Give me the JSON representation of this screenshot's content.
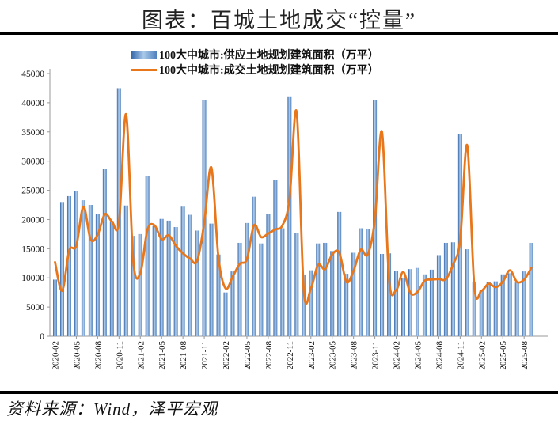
{
  "title": "图表：百城土地成交“控量”",
  "source_note": "资料来源：Wind，泽平宏观",
  "legend": [
    {
      "label": "100大中城市:供应土地规划建筑面积（万平）",
      "swatch": "blue-gradient-bar",
      "color": "#4f81bd"
    },
    {
      "label": "100大中城市:成交土地规划建筑面积（万平）",
      "swatch": "orange-line",
      "color": "#e8761b"
    }
  ],
  "chart_data": {
    "type": "bar",
    "title": "图表：百城土地成交“控量”",
    "xlabel": "",
    "ylabel": "",
    "ylim": [
      0,
      45000
    ],
    "ytick_step": 5000,
    "xtick_every": 3,
    "grid": false,
    "legend_position": "top",
    "bar_color": "#4f81bd",
    "line_color": "#e8761b",
    "categories": [
      "2020-02",
      "2020-03",
      "2020-04",
      "2020-05",
      "2020-06",
      "2020-07",
      "2020-08",
      "2020-09",
      "2020-10",
      "2020-11",
      "2020-12",
      "2021-01",
      "2021-02",
      "2021-03",
      "2021-04",
      "2021-05",
      "2021-06",
      "2021-07",
      "2021-08",
      "2021-09",
      "2021-10",
      "2021-11",
      "2021-12",
      "2022-01",
      "2022-02",
      "2022-03",
      "2022-04",
      "2022-05",
      "2022-06",
      "2022-07",
      "2022-08",
      "2022-09",
      "2022-10",
      "2022-11",
      "2022-12",
      "2023-01",
      "2023-02",
      "2023-03",
      "2023-04",
      "2023-05",
      "2023-06",
      "2023-07",
      "2023-08",
      "2023-09",
      "2023-10",
      "2023-11",
      "2023-12",
      "2024-01",
      "2024-02",
      "2024-03",
      "2024-04",
      "2024-05",
      "2024-06",
      "2024-07",
      "2024-08",
      "2024-09",
      "2024-10",
      "2024-11",
      "2024-12",
      "2025-01",
      "2025-02",
      "2025-03",
      "2025-04",
      "2025-05",
      "2025-06",
      "2025-07",
      "2025-08",
      "2025-09"
    ],
    "series": [
      {
        "name": "100大中城市:供应土地规划建筑面积（万平）",
        "type": "bar",
        "color": "#4f81bd",
        "values": [
          9700,
          23000,
          24000,
          24900,
          23300,
          22500,
          21000,
          28700,
          19700,
          42500,
          22400,
          17200,
          17500,
          27400,
          18900,
          20100,
          19800,
          18700,
          22200,
          20800,
          18100,
          40400,
          19300,
          14000,
          7500,
          11100,
          16000,
          19400,
          23900,
          15900,
          21000,
          26700,
          18500,
          41100,
          17700,
          10500,
          11300,
          15900,
          16000,
          14600,
          21300,
          10700,
          14300,
          18500,
          18300,
          40400,
          14100,
          14200,
          11200,
          9900,
          11500,
          11700,
          10600,
          11400,
          13900,
          16000,
          16100,
          34700,
          14900,
          9300,
          7800,
          9300,
          9400,
          10600,
          10800,
          9200,
          11100,
          16000
        ]
      },
      {
        "name": "100大中城市:成交土地规划建筑面积（万平）",
        "type": "line",
        "color": "#e8761b",
        "values": [
          12700,
          7800,
          14700,
          15500,
          22200,
          16600,
          17400,
          20900,
          19700,
          19500,
          38000,
          13000,
          10800,
          18200,
          19000,
          16600,
          17300,
          15500,
          14200,
          13300,
          12900,
          19500,
          28900,
          13500,
          8200,
          10200,
          12400,
          13200,
          19000,
          17000,
          17600,
          18300,
          19000,
          23500,
          38400,
          7900,
          8200,
          12200,
          11500,
          14000,
          14300,
          9300,
          11200,
          14800,
          14000,
          20000,
          35000,
          9700,
          7900,
          11000,
          7400,
          7600,
          9500,
          9700,
          9800,
          9800,
          12300,
          16500,
          32700,
          8500,
          7800,
          9000,
          8400,
          9300,
          11300,
          9300,
          9700,
          11700
        ]
      }
    ]
  }
}
